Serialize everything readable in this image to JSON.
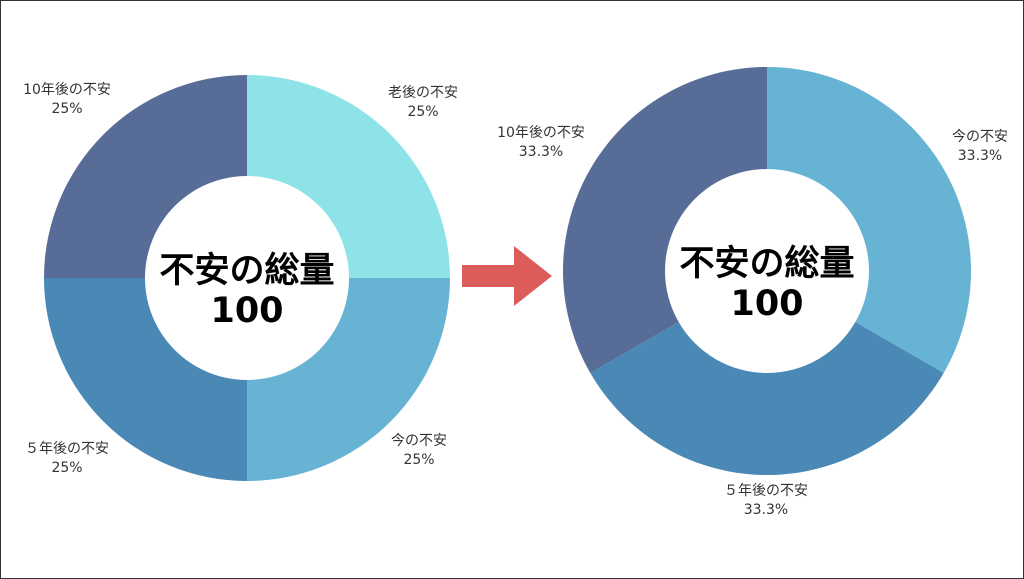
{
  "colors": {
    "slice_light_cyan": "#8EE3E8",
    "slice_sky_blue": "#66B3D4",
    "slice_steel_blue": "#4A88B6",
    "slice_slate_navy": "#576C96",
    "arrow": "#DC5C5A",
    "center_fill": "#FFFFFF"
  },
  "chart_data": [
    {
      "type": "pie",
      "title": "",
      "center_title": "不安の総量",
      "center_value": "100",
      "slices": [
        {
          "label": "老後の不安",
          "value": 25,
          "value_text": "25%",
          "color": "#8EE3E8"
        },
        {
          "label": "今の不安",
          "value": 25,
          "value_text": "25%",
          "color": "#66B3D4"
        },
        {
          "label": "５年後の不安",
          "value": 25,
          "value_text": "25%",
          "color": "#4A88B6"
        },
        {
          "label": "10年後の不安",
          "value": 25,
          "value_text": "25%",
          "color": "#576C96"
        }
      ]
    },
    {
      "type": "pie",
      "title": "",
      "center_title": "不安の総量",
      "center_value": "100",
      "slices": [
        {
          "label": "今の不安",
          "value": 33.3,
          "value_text": "33.3%",
          "color": "#66B3D4"
        },
        {
          "label": "５年後の不安",
          "value": 33.3,
          "value_text": "33.3%",
          "color": "#4A88B6"
        },
        {
          "label": "10年後の不安",
          "value": 33.3,
          "value_text": "33.3%",
          "color": "#576C96"
        }
      ]
    }
  ]
}
